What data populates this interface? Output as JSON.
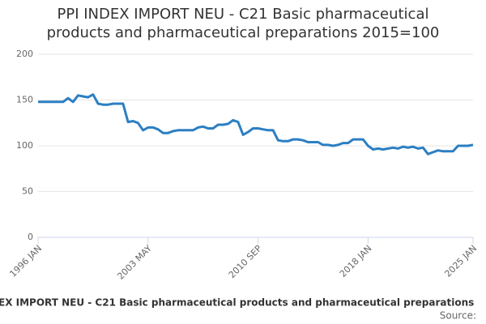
{
  "chart_data": {
    "type": "line",
    "title": "PPI INDEX IMPORT NEU - C21 Basic pharmaceutical products and pharmaceutical preparations 2015=100",
    "x_label": "EX IMPORT NEU - C21 Basic pharmaceutical products and pharmaceutical preparations",
    "source": "Source:",
    "categories": [
      "1996 JAN",
      "1996 MAY",
      "1996 SEP",
      "1997 JAN",
      "1997 MAY",
      "1997 SEP",
      "1998 JAN",
      "1998 MAY",
      "1998 SEP",
      "1999 JAN",
      "1999 MAY",
      "1999 SEP",
      "2000 JAN",
      "2000 MAY",
      "2000 SEP",
      "2001 JAN",
      "2001 MAY",
      "2001 SEP",
      "2002 JAN",
      "2002 MAY",
      "2002 SEP",
      "2003 JAN",
      "2003 MAY",
      "2003 SEP",
      "2004 JAN",
      "2004 MAY",
      "2004 SEP",
      "2005 JAN",
      "2005 MAY",
      "2005 SEP",
      "2006 JAN",
      "2006 MAY",
      "2006 SEP",
      "2007 JAN",
      "2007 MAY",
      "2007 SEP",
      "2008 JAN",
      "2008 MAY",
      "2008 SEP",
      "2009 JAN",
      "2009 MAY",
      "2009 SEP",
      "2010 JAN",
      "2010 MAY",
      "2010 SEP",
      "2011 JAN",
      "2011 MAY",
      "2011 SEP",
      "2012 JAN",
      "2012 MAY",
      "2012 SEP",
      "2013 JAN",
      "2013 MAY",
      "2013 SEP",
      "2014 JAN",
      "2014 MAY",
      "2014 SEP",
      "2015 JAN",
      "2015 MAY",
      "2015 SEP",
      "2016 JAN",
      "2016 MAY",
      "2016 SEP",
      "2017 JAN",
      "2017 MAY",
      "2017 SEP",
      "2018 JAN",
      "2018 MAY",
      "2018 SEP",
      "2019 JAN",
      "2019 MAY",
      "2019 SEP",
      "2020 JAN",
      "2020 MAY",
      "2020 SEP",
      "2021 JAN",
      "2021 MAY",
      "2021 SEP",
      "2022 JAN",
      "2022 MAY",
      "2022 SEP",
      "2023 JAN",
      "2023 MAY",
      "2023 SEP",
      "2024 JAN",
      "2024 MAY",
      "2024 SEP",
      "2025 JAN"
    ],
    "series": [
      {
        "color": "#2b7fc3",
        "values": [
          148,
          148,
          148,
          148,
          148,
          148,
          152,
          148,
          155,
          154,
          153,
          156,
          146,
          145,
          145,
          146,
          146,
          146,
          126,
          127,
          125,
          117,
          120,
          120,
          118,
          114,
          114,
          116,
          117,
          117,
          117,
          117,
          120,
          121,
          119,
          119,
          123,
          123,
          124,
          128,
          126,
          112,
          115,
          119,
          119,
          118,
          117,
          117,
          106,
          105,
          105,
          107,
          107,
          106,
          104,
          104,
          104,
          101,
          101,
          100,
          101,
          103,
          103,
          107,
          107,
          107,
          100,
          96,
          97,
          96,
          97,
          98,
          97,
          99,
          98,
          99,
          97,
          98,
          91,
          93,
          95,
          94,
          94,
          94,
          100,
          100,
          100,
          101
        ]
      }
    ],
    "xticks": [
      "1996 JAN",
      "2003 MAY",
      "2010 SEP",
      "2018 JAN",
      "2025 JAN"
    ],
    "ylim": [
      0,
      200
    ],
    "yticks": [
      0,
      50,
      100,
      150,
      200
    ],
    "grid": true
  }
}
